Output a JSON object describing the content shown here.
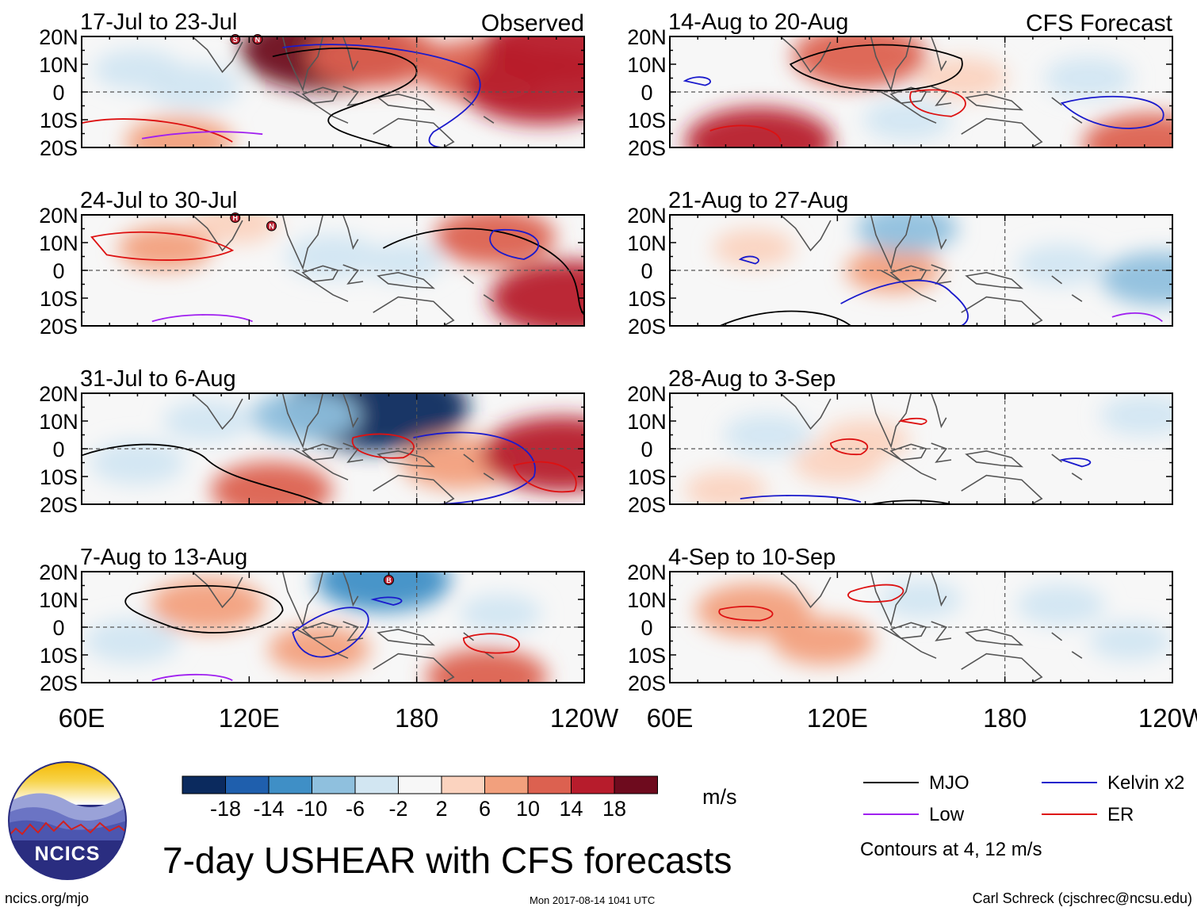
{
  "title": "7-day USHEAR with CFS forecasts",
  "footer": {
    "website": "ncics.org/mjo",
    "timestamp": "Mon 2017-08-14 1041 UTC",
    "author": "Carl Schreck (cjschrec@ncsu.edu)"
  },
  "logo": {
    "label": "NCICS"
  },
  "column_labels": {
    "observed": "Observed",
    "forecast": "CFS Forecast"
  },
  "colorbar": {
    "units": "m/s",
    "tick_labels": [
      "-18",
      "-14",
      "-10",
      "-6",
      "-2",
      "2",
      "6",
      "10",
      "14",
      "18"
    ],
    "colors": [
      "#0b2a5e",
      "#1f5fad",
      "#3f8fc6",
      "#8fc0de",
      "#d2e6f2",
      "#f7f7f7",
      "#fbd3bf",
      "#f2a07d",
      "#dc6150",
      "#b71c2c",
      "#6e0b1e"
    ]
  },
  "legend": {
    "items": [
      {
        "label": "MJO",
        "color": "#000000"
      },
      {
        "label": "Kelvin x2",
        "color": "#1a1acc"
      },
      {
        "label": "Low",
        "color": "#a020f0"
      },
      {
        "label": "ER",
        "color": "#dd1111"
      }
    ],
    "note": "Contours at 4, 12 m/s"
  },
  "chart_data": {
    "type": "heatmap",
    "title": "7-day USHEAR with CFS forecasts",
    "variable": "USHEAR",
    "units": "m/s",
    "x_tick_labels": [
      "60E",
      "120E",
      "180",
      "120W"
    ],
    "x_ticks_deg_east": [
      60,
      120,
      180,
      240
    ],
    "xlim_deg_east": [
      60,
      240
    ],
    "y_tick_labels": [
      "20N",
      "10N",
      "0",
      "10S",
      "20S"
    ],
    "y_ticks_deg": [
      20,
      10,
      0,
      -10,
      -20
    ],
    "ylim_deg": [
      -20,
      20
    ],
    "color_levels": [
      -18,
      -14,
      -10,
      -6,
      -2,
      2,
      6,
      10,
      14,
      18
    ],
    "panels": [
      {
        "period": "17-Jul to 23-Jul",
        "source": "Observed",
        "anomalies": [
          {
            "lon": 148,
            "lat": 15,
            "value": 18
          },
          {
            "lon": 165,
            "lat": 13,
            "value": 12
          },
          {
            "lon": 205,
            "lat": 8,
            "value": 12
          },
          {
            "lon": 225,
            "lat": 2,
            "value": 16
          },
          {
            "lon": 100,
            "lat": 2,
            "value": -6
          },
          {
            "lon": 80,
            "lat": 8,
            "value": -5
          },
          {
            "lon": 230,
            "lat": 16,
            "value": 14
          },
          {
            "lon": 95,
            "lat": -18,
            "value": 8
          }
        ],
        "storm_symbols": [
          {
            "label": "S",
            "lon": 115,
            "lat": 19
          },
          {
            "label": "N",
            "lon": 123,
            "lat": 19
          }
        ]
      },
      {
        "period": "24-Jul to 30-Jul",
        "source": "Observed",
        "anomalies": [
          {
            "lon": 208,
            "lat": 12,
            "value": 10
          },
          {
            "lon": 235,
            "lat": -10,
            "value": 16
          },
          {
            "lon": 150,
            "lat": 5,
            "value": -6
          },
          {
            "lon": 90,
            "lat": 8,
            "value": 6
          },
          {
            "lon": 175,
            "lat": 3,
            "value": -4
          },
          {
            "lon": 115,
            "lat": 17,
            "value": 5
          }
        ],
        "storm_symbols": [
          {
            "label": "N",
            "lon": 128,
            "lat": 16
          },
          {
            "label": "H",
            "lon": 115,
            "lat": 19
          }
        ]
      },
      {
        "period": "31-Jul to 6-Aug",
        "source": "Observed",
        "anomalies": [
          {
            "lon": 165,
            "lat": 15,
            "value": -20
          },
          {
            "lon": 140,
            "lat": 12,
            "value": -8
          },
          {
            "lon": 195,
            "lat": -5,
            "value": 9
          },
          {
            "lon": 232,
            "lat": -2,
            "value": 16
          },
          {
            "lon": 80,
            "lat": -5,
            "value": -6
          },
          {
            "lon": 128,
            "lat": -15,
            "value": 10
          },
          {
            "lon": 105,
            "lat": 10,
            "value": -5
          }
        ],
        "storm_symbols": []
      },
      {
        "period": "7-Aug to 13-Aug",
        "source": "Observed",
        "anomalies": [
          {
            "lon": 168,
            "lat": 17,
            "value": -12
          },
          {
            "lon": 105,
            "lat": 8,
            "value": 9
          },
          {
            "lon": 145,
            "lat": -8,
            "value": 7
          },
          {
            "lon": 205,
            "lat": -18,
            "value": 10
          },
          {
            "lon": 78,
            "lat": -5,
            "value": -6
          },
          {
            "lon": 210,
            "lat": 5,
            "value": -4
          }
        ],
        "storm_symbols": [
          {
            "label": "B",
            "lon": 170,
            "lat": 17
          }
        ]
      },
      {
        "period": "14-Aug to 20-Aug",
        "source": "CFS Forecast",
        "anomalies": [
          {
            "lon": 128,
            "lat": 13,
            "value": 12
          },
          {
            "lon": 92,
            "lat": -18,
            "value": 14
          },
          {
            "lon": 210,
            "lat": 5,
            "value": -5
          },
          {
            "lon": 145,
            "lat": -10,
            "value": -5
          },
          {
            "lon": 165,
            "lat": 5,
            "value": 5
          },
          {
            "lon": 232,
            "lat": -19,
            "value": 12
          }
        ],
        "storm_symbols": []
      },
      {
        "period": "21-Aug to 27-Aug",
        "source": "CFS Forecast",
        "anomalies": [
          {
            "lon": 235,
            "lat": -3,
            "value": -9
          },
          {
            "lon": 200,
            "lat": 2,
            "value": -5
          },
          {
            "lon": 140,
            "lat": 0,
            "value": 6
          },
          {
            "lon": 90,
            "lat": 8,
            "value": 4
          },
          {
            "lon": 145,
            "lat": 15,
            "value": -7
          }
        ],
        "storm_symbols": []
      },
      {
        "period": "28-Aug to 3-Sep",
        "source": "CFS Forecast",
        "anomalies": [
          {
            "lon": 95,
            "lat": 5,
            "value": -5
          },
          {
            "lon": 120,
            "lat": -5,
            "value": 5
          },
          {
            "lon": 230,
            "lat": 12,
            "value": -5
          },
          {
            "lon": 130,
            "lat": 3,
            "value": 5
          },
          {
            "lon": 80,
            "lat": -15,
            "value": 4
          }
        ],
        "storm_symbols": []
      },
      {
        "period": "4-Sep to 10-Sep",
        "source": "CFS Forecast",
        "anomalies": [
          {
            "lon": 90,
            "lat": 6,
            "value": 9
          },
          {
            "lon": 115,
            "lat": -5,
            "value": 7
          },
          {
            "lon": 150,
            "lat": 10,
            "value": -4
          },
          {
            "lon": 200,
            "lat": 8,
            "value": -5
          },
          {
            "lon": 225,
            "lat": -5,
            "value": -4
          }
        ],
        "storm_symbols": []
      }
    ]
  }
}
